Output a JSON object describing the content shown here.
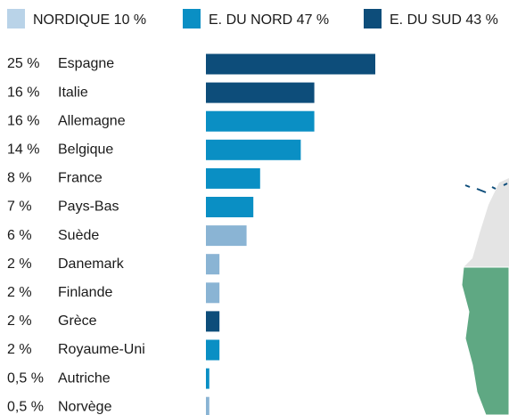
{
  "chart_data": {
    "type": "bar",
    "orientation": "horizontal",
    "legend": [
      {
        "name": "NORDIQUE 10 %",
        "color": "#b9d3e8"
      },
      {
        "name": "E. DU NORD 47 %",
        "color": "#0a8fc4"
      },
      {
        "name": "E. DU SUD 43 %",
        "color": "#0d4d7a"
      }
    ],
    "categories": [
      "Espagne",
      "Italie",
      "Allemagne",
      "Belgique",
      "France",
      "Pays-Bas",
      "Suède",
      "Danemark",
      "Finlande",
      "Grèce",
      "Royaume-Uni",
      "Autriche",
      "Norvège"
    ],
    "values": [
      25,
      16,
      16,
      14,
      8,
      7,
      6,
      2,
      2,
      2,
      2,
      0.5,
      0.5
    ],
    "value_labels": [
      "25 %",
      "16 %",
      "16 %",
      "14 %",
      "8 %",
      "7 %",
      "6 %",
      "2 %",
      "2 %",
      "2 %",
      "2 %",
      "0,5 %",
      "0,5 %"
    ],
    "colors": [
      "#0d4d7a",
      "#0d4d7a",
      "#0a8fc4",
      "#0a8fc4",
      "#0a8fc4",
      "#0a8fc4",
      "#8ab4d4",
      "#8ab4d4",
      "#8ab4d4",
      "#0d4d7a",
      "#0a8fc4",
      "#0a8fc4",
      "#8ab4d4"
    ]
  }
}
